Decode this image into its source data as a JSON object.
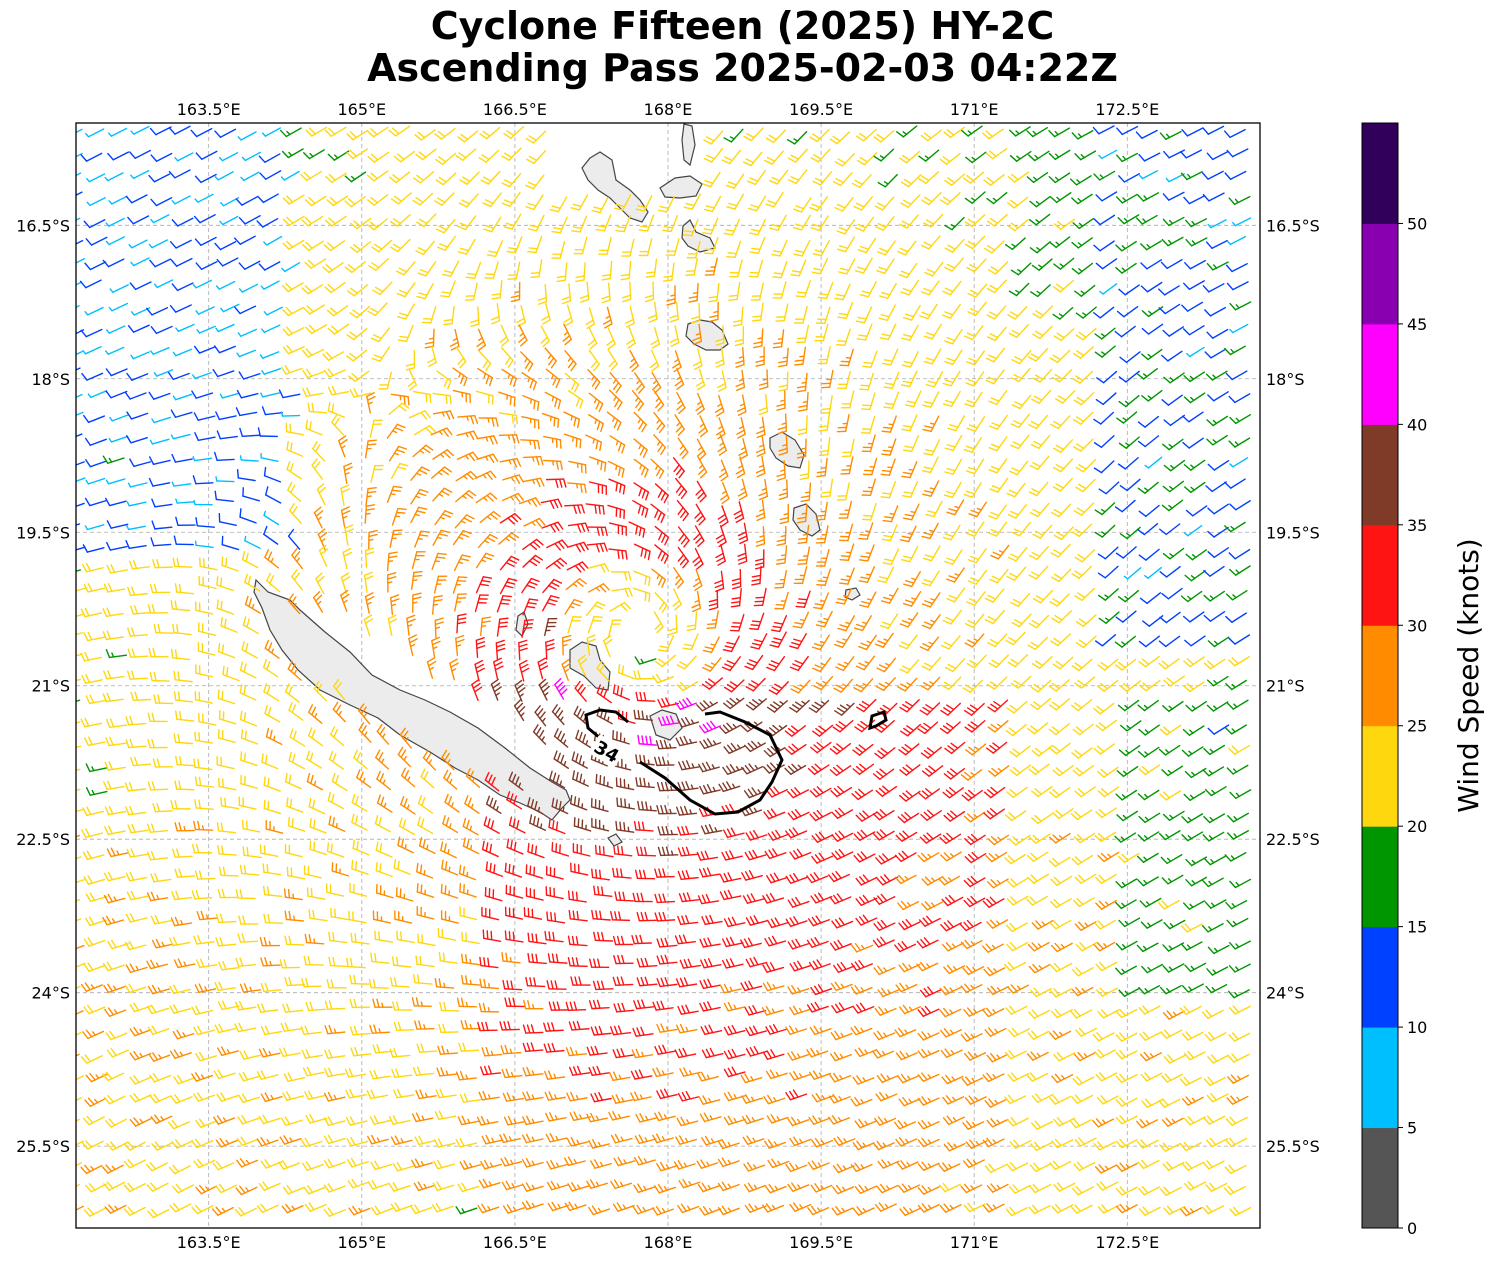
{
  "title_line1": "Cyclone Fifteen (2025) HY-2C",
  "title_line2": "Ascending Pass 2025-02-03 04:22Z",
  "lon_ticks": [
    "163.5°E",
    "165°E",
    "166.5°E",
    "168°E",
    "169.5°E",
    "171°E",
    "172.5°E"
  ],
  "lat_ticks": [
    "16.5°S",
    "18°S",
    "19.5°S",
    "21°S",
    "22.5°S",
    "24°S",
    "25.5°S"
  ],
  "contour_label": "34",
  "colorbar": {
    "title": "Wind Speed (knots)",
    "ticks": [
      "0",
      "5",
      "10",
      "15",
      "20",
      "25",
      "30",
      "35",
      "40",
      "45",
      "50"
    ],
    "colors": [
      "#555555",
      "#00bfff",
      "#0040ff",
      "#009600",
      "#ffd70f",
      "#ff8c00",
      "#ff1414",
      "#803a28",
      "#ff00ff",
      "#8800b0",
      "#30005a"
    ]
  },
  "chart_data": {
    "type": "wind-barb-map",
    "lon_range": [
      162.2,
      173.8
    ],
    "lat_range": [
      -26.3,
      -15.5
    ],
    "storm_center_approx": {
      "lon": 167.7,
      "lat": -20.5
    },
    "speed_units": "knots",
    "contour_levels": [
      34
    ],
    "grid": true
  }
}
